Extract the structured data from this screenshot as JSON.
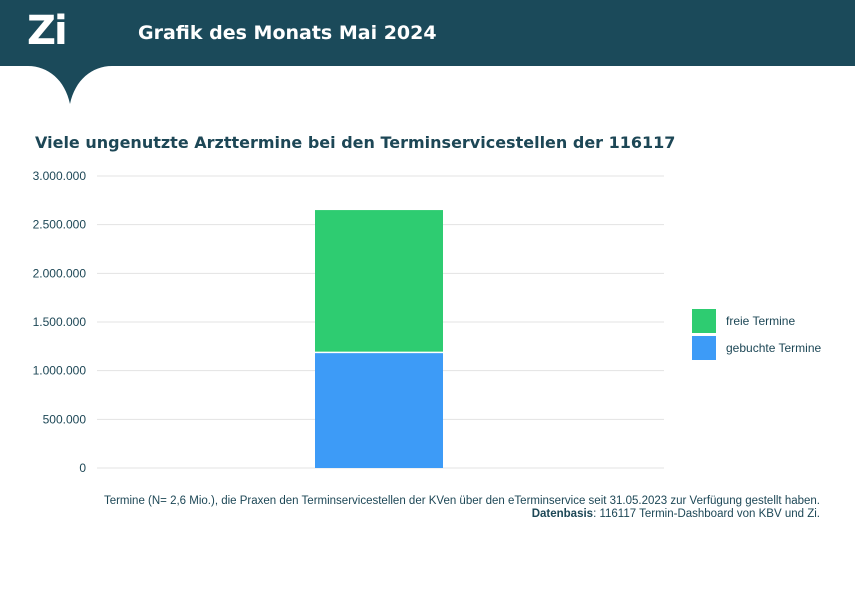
{
  "header": {
    "logo_text": "Zi",
    "title": "Grafik des Monats Mai 2024"
  },
  "colors": {
    "header_bg": "#1b4a5a",
    "freie": "#2ecc71",
    "gebuchte": "#3d9bf7",
    "text": "#1d4756",
    "grid": "#e3e3e3"
  },
  "chart_data": {
    "type": "bar",
    "stacked": true,
    "title": "Viele ungenutzte Arzttermine bei den Terminservicestellen der 116117",
    "categories": [
      ""
    ],
    "series": [
      {
        "name": "gebuchte Termine",
        "values": [
          1180000
        ]
      },
      {
        "name": "freie Termine",
        "values": [
          1470000
        ]
      }
    ],
    "ylim": [
      0,
      3000000
    ],
    "yticks": [
      "0",
      "500.000",
      "1.000.000",
      "1.500.000",
      "2.000.000",
      "2.500.000",
      "3.000.000"
    ],
    "ytick_values": [
      0,
      500000,
      1000000,
      1500000,
      2000000,
      2500000,
      3000000
    ],
    "grid": true,
    "legend_position": "right"
  },
  "legend": [
    {
      "label": "freie Termine",
      "color": "#2ecc71"
    },
    {
      "label": "gebuchte Termine",
      "color": "#3d9bf7"
    }
  ],
  "footnote": {
    "line1": "Termine (N= 2,6 Mio.), die Praxen den Terminservicestellen der KVen über den eTerminservice seit 31.05.2023 zur Verfügung gestellt haben.",
    "source_label": "Datenbasis",
    "source_text": ": 116117 Termin-Dashboard von KBV und Zi."
  }
}
